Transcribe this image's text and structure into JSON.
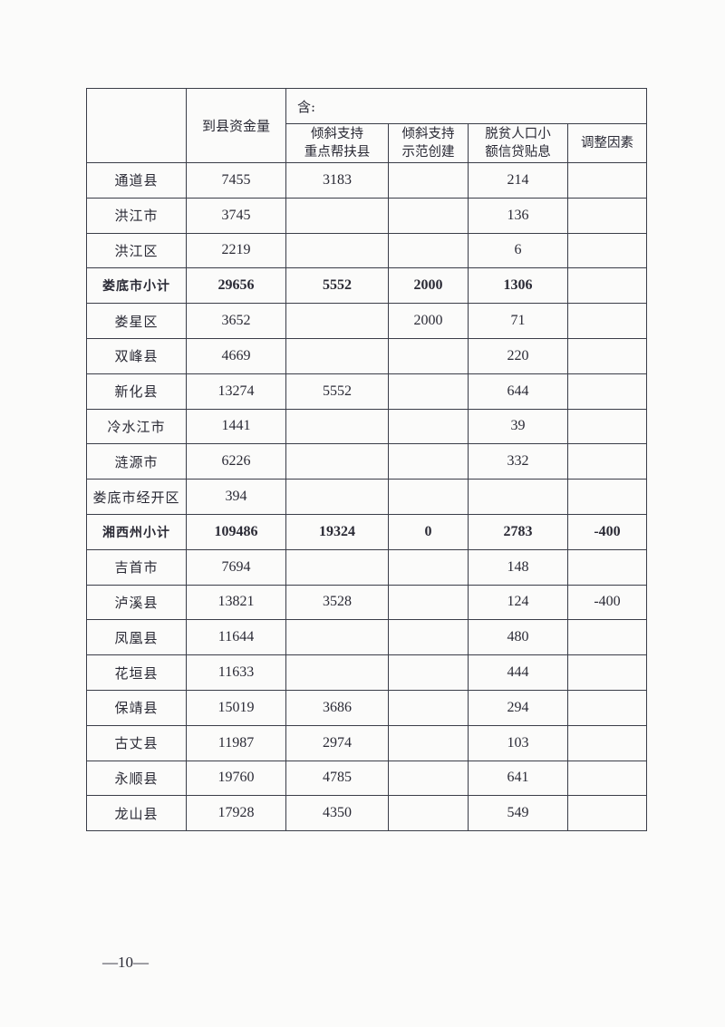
{
  "table": {
    "header": {
      "amount": "到县资金量",
      "includes": "含:",
      "col_key_support": "倾斜支持\n重点帮扶县",
      "col_key_support_l1": "倾斜支持",
      "col_key_support_l2": "重点帮扶县",
      "col_demo_l1": "倾斜支持",
      "col_demo_l2": "示范创建",
      "col_loan_l1": "脱贫人口小",
      "col_loan_l2": "额信贷贴息",
      "col_adjust": "调整因素"
    },
    "rows": [
      {
        "name": "通道县",
        "amount": "7455",
        "key": "3183",
        "demo": "",
        "loan": "214",
        "adjust": "",
        "subtotal": false
      },
      {
        "name": "洪江市",
        "amount": "3745",
        "key": "",
        "demo": "",
        "loan": "136",
        "adjust": "",
        "subtotal": false
      },
      {
        "name": "洪江区",
        "amount": "2219",
        "key": "",
        "demo": "",
        "loan": "6",
        "adjust": "",
        "subtotal": false
      },
      {
        "name": "娄底市小计",
        "amount": "29656",
        "key": "5552",
        "demo": "2000",
        "loan": "1306",
        "adjust": "",
        "subtotal": true
      },
      {
        "name": "娄星区",
        "amount": "3652",
        "key": "",
        "demo": "2000",
        "loan": "71",
        "adjust": "",
        "subtotal": false
      },
      {
        "name": "双峰县",
        "amount": "4669",
        "key": "",
        "demo": "",
        "loan": "220",
        "adjust": "",
        "subtotal": false
      },
      {
        "name": "新化县",
        "amount": "13274",
        "key": "5552",
        "demo": "",
        "loan": "644",
        "adjust": "",
        "subtotal": false
      },
      {
        "name": "冷水江市",
        "amount": "1441",
        "key": "",
        "demo": "",
        "loan": "39",
        "adjust": "",
        "subtotal": false
      },
      {
        "name": "涟源市",
        "amount": "6226",
        "key": "",
        "demo": "",
        "loan": "332",
        "adjust": "",
        "subtotal": false
      },
      {
        "name": "娄底市经开区",
        "amount": "394",
        "key": "",
        "demo": "",
        "loan": "",
        "adjust": "",
        "subtotal": false
      },
      {
        "name": "湘西州小计",
        "amount": "109486",
        "key": "19324",
        "demo": "0",
        "loan": "2783",
        "adjust": "-400",
        "subtotal": true
      },
      {
        "name": "吉首市",
        "amount": "7694",
        "key": "",
        "demo": "",
        "loan": "148",
        "adjust": "",
        "subtotal": false
      },
      {
        "name": "泸溪县",
        "amount": "13821",
        "key": "3528",
        "demo": "",
        "loan": "124",
        "adjust": "-400",
        "subtotal": false
      },
      {
        "name": "凤凰县",
        "amount": "11644",
        "key": "",
        "demo": "",
        "loan": "480",
        "adjust": "",
        "subtotal": false
      },
      {
        "name": "花垣县",
        "amount": "11633",
        "key": "",
        "demo": "",
        "loan": "444",
        "adjust": "",
        "subtotal": false
      },
      {
        "name": "保靖县",
        "amount": "15019",
        "key": "3686",
        "demo": "",
        "loan": "294",
        "adjust": "",
        "subtotal": false
      },
      {
        "name": "古丈县",
        "amount": "11987",
        "key": "2974",
        "demo": "",
        "loan": "103",
        "adjust": "",
        "subtotal": false
      },
      {
        "name": "永顺县",
        "amount": "19760",
        "key": "4785",
        "demo": "",
        "loan": "641",
        "adjust": "",
        "subtotal": false
      },
      {
        "name": "龙山县",
        "amount": "17928",
        "key": "4350",
        "demo": "",
        "loan": "549",
        "adjust": "",
        "subtotal": false
      }
    ]
  },
  "footer": {
    "page_number": "—10—"
  }
}
